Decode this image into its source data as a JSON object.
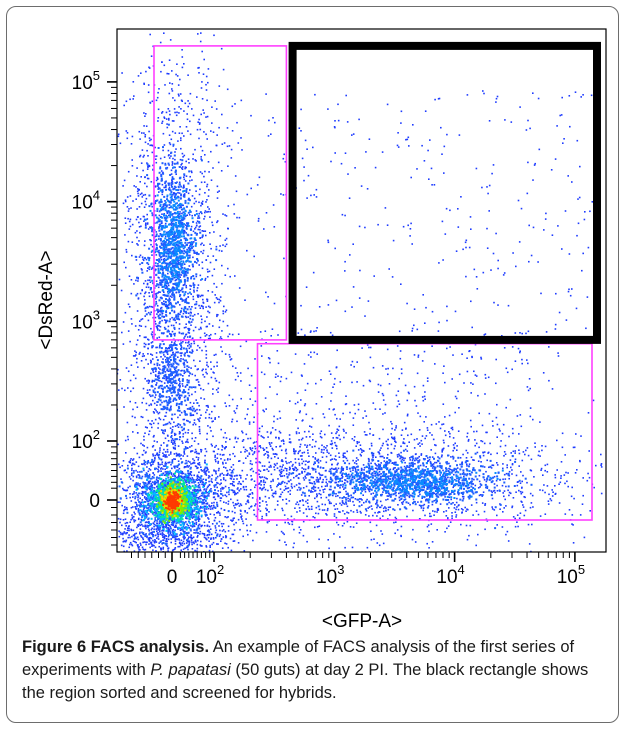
{
  "chart_data": {
    "type": "scatter",
    "subtype": "flow-cytometry-density-dot-plot",
    "xlabel": "<GFP-A>",
    "ylabel": "<DsRed-A>",
    "x_scale": "biexponential",
    "y_scale": "biexponential",
    "x_ticks": [
      {
        "value": 0,
        "label": "0",
        "exp": ""
      },
      {
        "value": 100,
        "label": "10",
        "exp": "2"
      },
      {
        "value": 1000,
        "label": "10",
        "exp": "3"
      },
      {
        "value": 10000,
        "label": "10",
        "exp": "4"
      },
      {
        "value": 100000,
        "label": "10",
        "exp": "5"
      }
    ],
    "y_ticks": [
      {
        "value": 0,
        "label": "0",
        "exp": ""
      },
      {
        "value": 100,
        "label": "10",
        "exp": "2"
      },
      {
        "value": 1000,
        "label": "10",
        "exp": "3"
      },
      {
        "value": 10000,
        "label": "10",
        "exp": "4"
      },
      {
        "value": 100000,
        "label": "10",
        "exp": "5"
      }
    ],
    "populations": [
      {
        "name": "",
        "center_x": 0,
        "center_y": 0,
        "density": "highest"
      },
      {
        "name": "",
        "center_x": 0,
        "center_y": 3000,
        "density": "high"
      },
      {
        "name": "",
        "center_x": 2000,
        "center_y": 0,
        "density": "medium"
      }
    ],
    "gates": [
      {
        "color": "#ff40ff",
        "x_range": [
          -40,
          400
        ],
        "y_range": [
          700,
          200000
        ]
      },
      {
        "color": "#ff40ff",
        "x_range": [
          230,
          180000
        ],
        "y_range": [
          -40,
          650
        ]
      },
      {
        "color": "#000000",
        "x_range": [
          450,
          200000
        ],
        "y_range": [
          700,
          200000
        ],
        "role": "sorted region"
      }
    ]
  },
  "caption": {
    "label": "Figure 6 FACS analysis.",
    "text_1": " An example of FACS analysis of the first series of experiments with ",
    "species": "P. papatasi",
    "text_2": " (50 guts) at day 2 PI. The black rectangle shows the region sorted and screened for hybrids."
  },
  "colors": {
    "frame_border": "#6d6d6d",
    "gate_magenta": "#ff40ff",
    "sort_gate": "#000000",
    "density_low": "#0000ff",
    "density_high": "#ff0000"
  }
}
